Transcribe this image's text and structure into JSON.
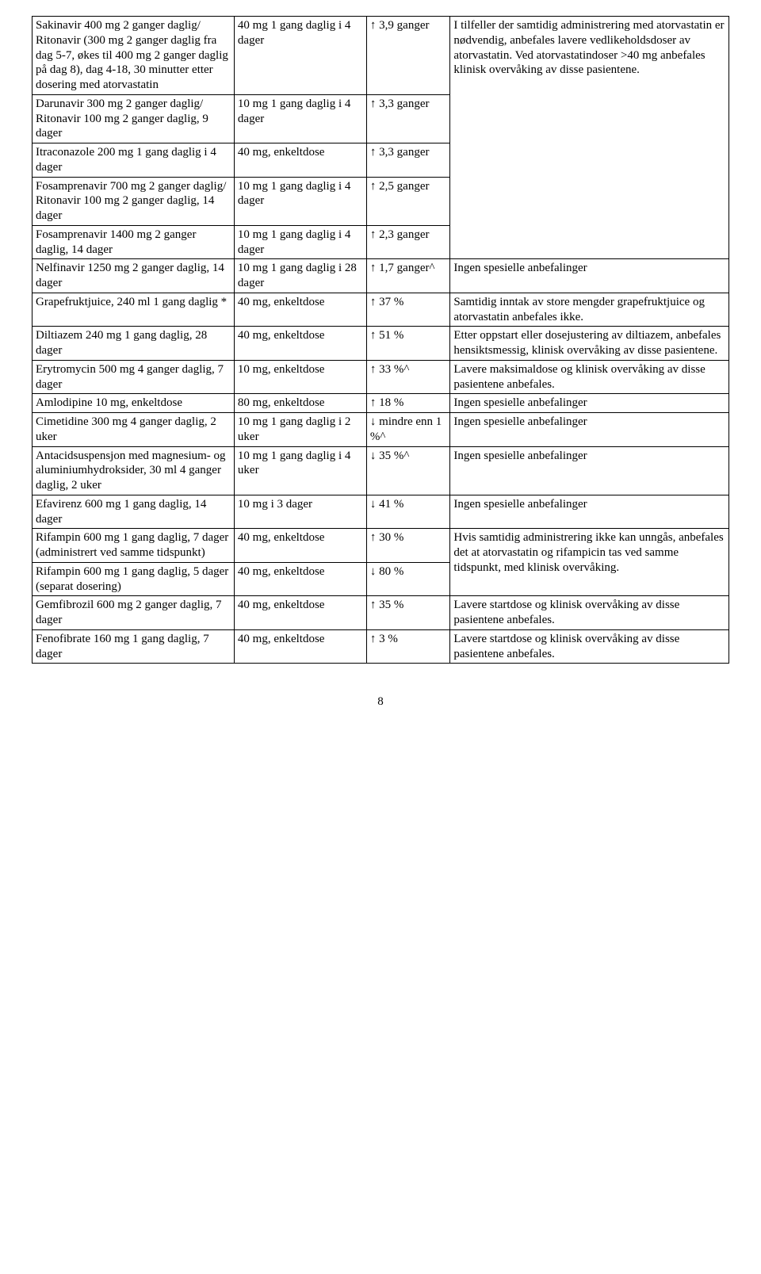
{
  "rows": [
    {
      "c1": "Sakinavir 400 mg 2 ganger daglig/\nRitonavir (300 mg 2 ganger daglig fra dag 5-7, økes til 400 mg 2 ganger daglig på dag 8), dag 4-18, 30 minutter etter dosering med atorvastatin",
      "c2": "40 mg 1 gang daglig i 4 dager",
      "c3": "↑ 3,9 ganger",
      "c4": "I tilfeller der samtidig administrering med atorvastatin er nødvendig, anbefales lavere vedlikeholdsdoser av atorvastatin. Ved atorvastatindoser >40 mg anbefales klinisk overvåking av disse pasientene.",
      "span4": 5
    },
    {
      "c1": "Darunavir 300 mg 2 ganger daglig/\nRitonavir 100 mg 2 ganger daglig, 9 dager",
      "c2": "10 mg 1 gang daglig i 4 dager",
      "c3": "↑ 3,3 ganger"
    },
    {
      "c1": "Itraconazole 200 mg 1 gang daglig i 4 dager",
      "c2": "40 mg, enkeltdose",
      "c3": "↑ 3,3 ganger"
    },
    {
      "c1": "Fosamprenavir 700 mg 2 ganger daglig/\nRitonavir 100 mg 2 ganger daglig, 14 dager",
      "c2": "10 mg 1 gang daglig i 4 dager",
      "c3": "↑ 2,5 ganger"
    },
    {
      "c1": "Fosamprenavir 1400 mg 2 ganger daglig, 14 dager",
      "c2": "10 mg 1 gang daglig i 4 dager",
      "c3": "↑ 2,3 ganger"
    },
    {
      "c1": "Nelfinavir 1250 mg 2 ganger daglig, 14 dager",
      "c2": "10 mg 1 gang daglig i 28 dager",
      "c3": "↑ 1,7 ganger^",
      "c4": "Ingen spesielle anbefalinger"
    },
    {
      "c1": "Grapefruktjuice, 240 ml 1 gang daglig *",
      "c2": "40 mg, enkeltdose",
      "c3": "↑ 37 %",
      "c4": "Samtidig inntak av store mengder grapefruktjuice og atorvastatin anbefales ikke."
    },
    {
      "c1": "Diltiazem 240 mg 1 gang daglig, 28 dager",
      "c2": "40 mg, enkeltdose",
      "c3": "↑ 51 %",
      "c4": "Etter oppstart eller dosejustering av diltiazem, anbefales hensiktsmessig, klinisk overvåking av disse pasientene."
    },
    {
      "c1": "Erytromycin 500 mg 4 ganger daglig, 7 dager",
      "c2": "10 mg, enkeltdose",
      "c3": "↑ 33 %^",
      "c4": "Lavere maksimaldose og klinisk overvåking av disse pasientene anbefales."
    },
    {
      "c1": "Amlodipine 10 mg, enkeltdose",
      "c2": "80 mg, enkeltdose",
      "c3": "↑ 18 %",
      "c4": "Ingen spesielle anbefalinger"
    },
    {
      "c1": "Cimetidine 300 mg 4 ganger daglig, 2 uker",
      "c2": "10 mg 1 gang daglig i 2 uker",
      "c3": "↓ mindre enn 1 %^",
      "c4": "Ingen spesielle anbefalinger"
    },
    {
      "c1": "Antacidsuspensjon med magnesium- og aluminiumhydroksider, 30 ml 4 ganger daglig, 2 uker",
      "c2": "10 mg 1 gang daglig i 4 uker",
      "c3": "↓ 35 %^",
      "c4": "Ingen spesielle anbefalinger"
    },
    {
      "c1": "Efavirenz 600 mg 1 gang daglig, 14 dager",
      "c2": "10 mg i 3 dager",
      "c3": "↓ 41 %",
      "c4": "Ingen spesielle anbefalinger"
    },
    {
      "c1": "Rifampin 600 mg 1 gang daglig, 7 dager (administrert ved samme tidspunkt)",
      "c2": "40 mg, enkeltdose",
      "c3": "↑ 30 %",
      "c4": "Hvis samtidig administrering ikke kan unngås, anbefales det at atorvastatin og rifampicin tas ved samme tidspunkt, med klinisk overvåking.",
      "span4": 2
    },
    {
      "c1": "Rifampin 600 mg 1 gang daglig, 5 dager (separat dosering)",
      "c2": "40 mg, enkeltdose",
      "c3": "↓ 80 %"
    },
    {
      "c1": "Gemfibrozil 600 mg 2 ganger daglig, 7 dager",
      "c2": "40 mg, enkeltdose",
      "c3": "↑ 35 %",
      "c4": "Lavere startdose og klinisk overvåking av disse pasientene anbefales."
    },
    {
      "c1": "Fenofibrate 160 mg 1 gang daglig, 7 dager",
      "c2": "40 mg, enkeltdose",
      "c3": "↑ 3 %",
      "c4": "Lavere startdose og klinisk overvåking av disse pasientene anbefales."
    }
  ],
  "page_number": "8"
}
